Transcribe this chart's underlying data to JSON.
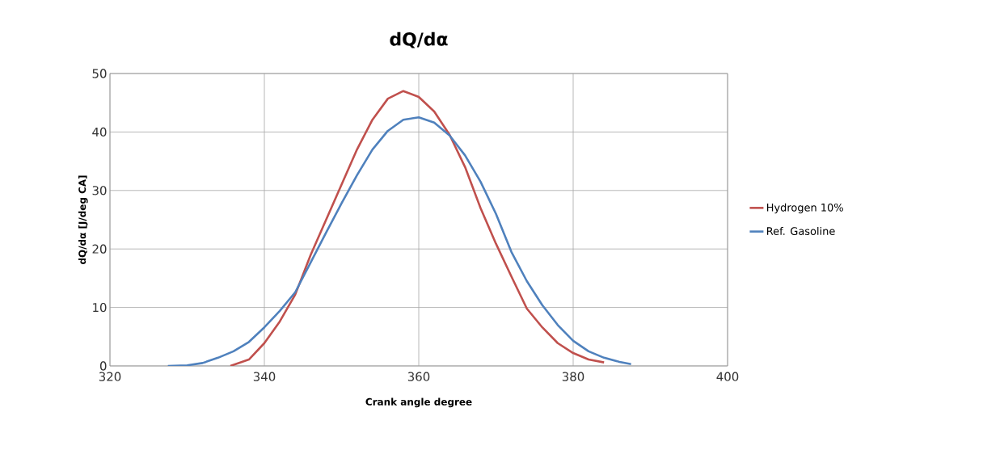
{
  "chart_data": {
    "type": "line",
    "title": "dQ/dα",
    "xlabel": "Crank angle degree",
    "ylabel": "dQ/dα [J/deg CA]",
    "xlim": [
      320,
      400
    ],
    "xticks": [
      320,
      340,
      360,
      380,
      400
    ],
    "ylim": [
      0,
      50
    ],
    "yticks": [
      0,
      10,
      20,
      30,
      40,
      50
    ],
    "grid": true,
    "legend": "right",
    "marker": "none",
    "line_style": "solid",
    "series": [
      {
        "name": "Hydrogen 10%",
        "color": "#c0504d",
        "x": [
          335.6,
          338,
          340,
          342,
          344,
          346,
          348,
          350,
          352,
          354,
          356,
          358,
          360,
          362,
          364,
          366,
          368,
          370,
          372,
          374,
          376,
          378,
          380,
          382,
          384
        ],
        "values": [
          0,
          1.1,
          3.9,
          7.6,
          12.2,
          19,
          25,
          31,
          37,
          42.1,
          45.7,
          47,
          46,
          43.5,
          39.5,
          34,
          27,
          20.9,
          15.3,
          9.8,
          6.6,
          3.9,
          2.2,
          1.1,
          0.6
        ]
      },
      {
        "name": "Ref. Gasoline",
        "color": "#4f81bd",
        "x": [
          327.5,
          330,
          332,
          334,
          336,
          338,
          340,
          342,
          344,
          346,
          348,
          350,
          352,
          354,
          356,
          358,
          360,
          362,
          364,
          366,
          368,
          370,
          372,
          374,
          376,
          378,
          380,
          382,
          384,
          386,
          387.5
        ],
        "values": [
          0,
          0.1,
          0.5,
          1.4,
          2.5,
          4.1,
          6.6,
          9.4,
          12.6,
          17.7,
          22.8,
          27.8,
          32.6,
          37,
          40.2,
          42.1,
          42.5,
          41.6,
          39.4,
          36,
          31.5,
          26,
          19.5,
          14.5,
          10.4,
          7,
          4.3,
          2.5,
          1.4,
          0.7,
          0.3
        ]
      }
    ]
  }
}
